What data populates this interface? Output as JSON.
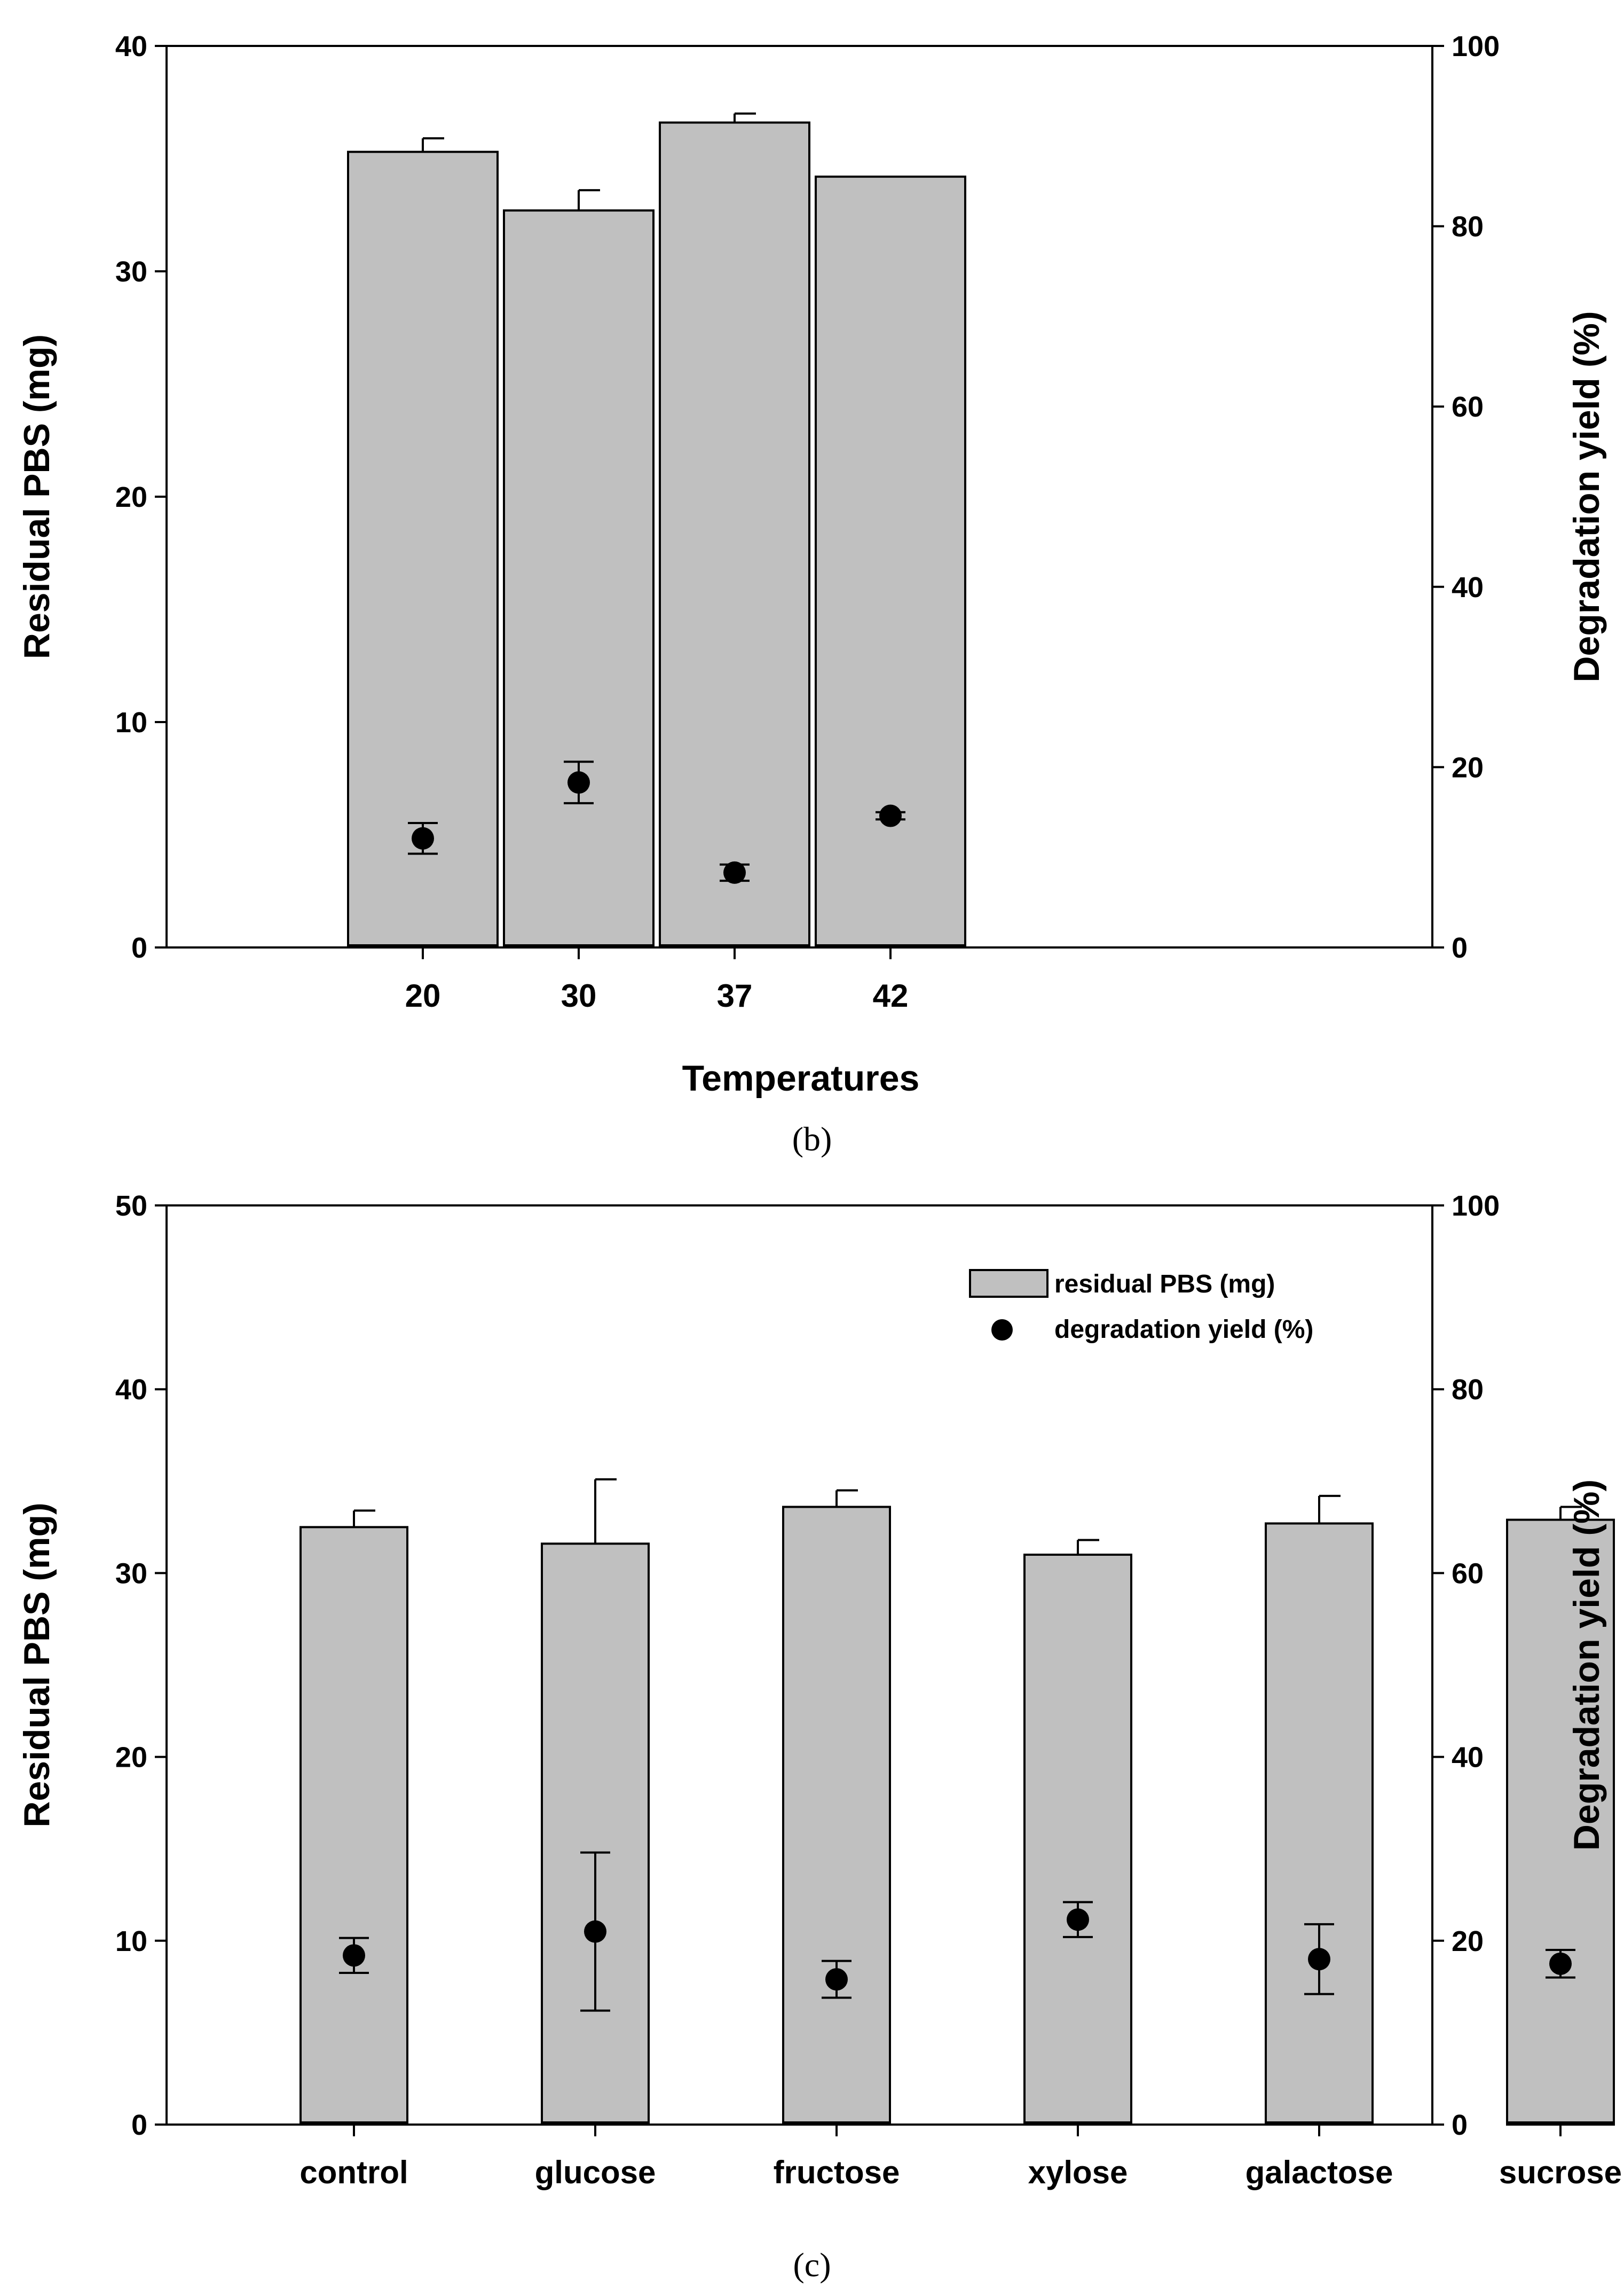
{
  "chart_data": [
    {
      "type": "bar",
      "panel_label": "(b)",
      "categories": [
        "20",
        "30",
        "37",
        "42"
      ],
      "xlabel": "Temperatures",
      "ylabel": "Residual PBS (mg)",
      "ylabel_right": "Degradation yield (%)",
      "ylim": [
        0,
        40
      ],
      "ylim_right": [
        0,
        100
      ],
      "yticks": [
        "0",
        "10",
        "20",
        "30",
        "40"
      ],
      "yticks_right": [
        "0",
        "20",
        "40",
        "60",
        "80",
        "100"
      ],
      "series": [
        {
          "name": "residual PBS (mg)",
          "axis": "left",
          "kind": "bar",
          "values": [
            35.3,
            32.7,
            36.6,
            34.2
          ],
          "errors": [
            0.6,
            0.9,
            0.4,
            0
          ]
        },
        {
          "name": "degradation yield (%)",
          "axis": "right",
          "kind": "scatter",
          "values": [
            12.1,
            18.3,
            8.3,
            14.6
          ],
          "errors": [
            1.7,
            2.3,
            0.9,
            0.4
          ]
        }
      ],
      "legend": null
    },
    {
      "type": "bar",
      "panel_label": "(c)",
      "categories": [
        "control",
        "glucose",
        "fructose",
        "xylose",
        "galactose",
        "sucrose"
      ],
      "xlabel": "",
      "ylabel": "Residual PBS (mg)",
      "ylabel_right": "Degradation yield (%)",
      "ylim": [
        0,
        50
      ],
      "ylim_right": [
        0,
        100
      ],
      "yticks": [
        "0",
        "10",
        "20",
        "30",
        "40",
        "50"
      ],
      "yticks_right": [
        "0",
        "20",
        "40",
        "60",
        "80",
        "100"
      ],
      "series": [
        {
          "name": "residual PBS (mg)",
          "axis": "left",
          "kind": "bar",
          "values": [
            32.5,
            31.6,
            33.6,
            31.0,
            32.7,
            32.9
          ],
          "errors": [
            0.9,
            3.5,
            0.9,
            0.8,
            1.5,
            0.7
          ]
        },
        {
          "name": "degradation yield (%)",
          "axis": "right",
          "kind": "scatter",
          "values": [
            18.4,
            21.0,
            15.8,
            22.3,
            18.0,
            17.5
          ],
          "errors": [
            1.9,
            8.6,
            2.0,
            1.9,
            3.8,
            1.5
          ]
        }
      ],
      "legend": {
        "position": "top-right",
        "entries": [
          "residual PBS (mg)",
          "degradation yield (%)"
        ]
      }
    }
  ]
}
